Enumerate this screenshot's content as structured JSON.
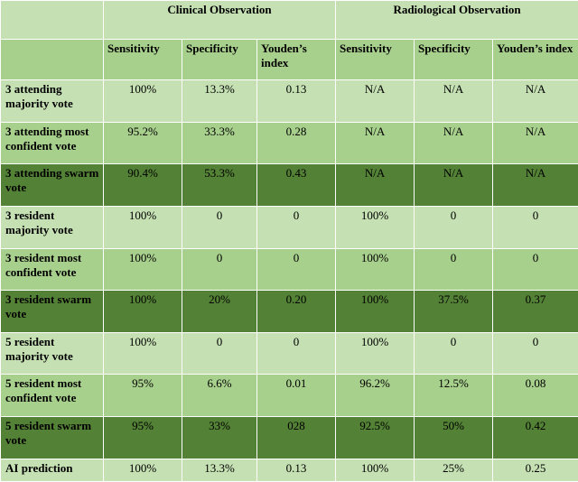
{
  "groups": [
    "Clinical Observation",
    "Radiological Observation"
  ],
  "metrics": [
    "Sensitivity",
    "Specificity",
    "Youden’s index"
  ],
  "rows": [
    {
      "label": "3 attending majority vote",
      "values": [
        "100%",
        "13.3%",
        "0.13",
        "N/A",
        "N/A",
        "N/A"
      ]
    },
    {
      "label": "3 attending most confident vote",
      "values": [
        "95.2%",
        "33.3%",
        "0.28",
        "N/A",
        "N/A",
        "N/A"
      ]
    },
    {
      "label": "3 attending swarm vote",
      "values": [
        "90.4%",
        "53.3%",
        "0.43",
        "N/A",
        "N/A",
        "N/A"
      ]
    },
    {
      "label": "3 resident majority vote",
      "values": [
        "100%",
        "0",
        "0",
        "100%",
        "0",
        "0"
      ]
    },
    {
      "label": "3 resident most confident vote",
      "values": [
        "100%",
        "0",
        "0",
        "100%",
        "0",
        "0"
      ]
    },
    {
      "label": "3 resident swarm vote",
      "values": [
        "100%",
        "20%",
        "0.20",
        "100%",
        "37.5%",
        "0.37"
      ]
    },
    {
      "label": "5 resident majority vote",
      "values": [
        "100%",
        "0",
        "0",
        "100%",
        "0",
        "0"
      ]
    },
    {
      "label": "5 resident most confident vote",
      "values": [
        "95%",
        "6.6%",
        "0.01",
        "96.2%",
        "12.5%",
        "0.08"
      ]
    },
    {
      "label": "5 resident swarm vote",
      "values": [
        "95%",
        "33%",
        "028",
        "92.5%",
        "50%",
        "0.42"
      ]
    },
    {
      "label": "AI prediction",
      "values": [
        "100%",
        "13.3%",
        "0.13",
        "100%",
        "25%",
        "0.25"
      ]
    }
  ],
  "colors": {
    "light": "#c5e0b3",
    "mid": "#a8d08d",
    "dark": "#538135"
  }
}
